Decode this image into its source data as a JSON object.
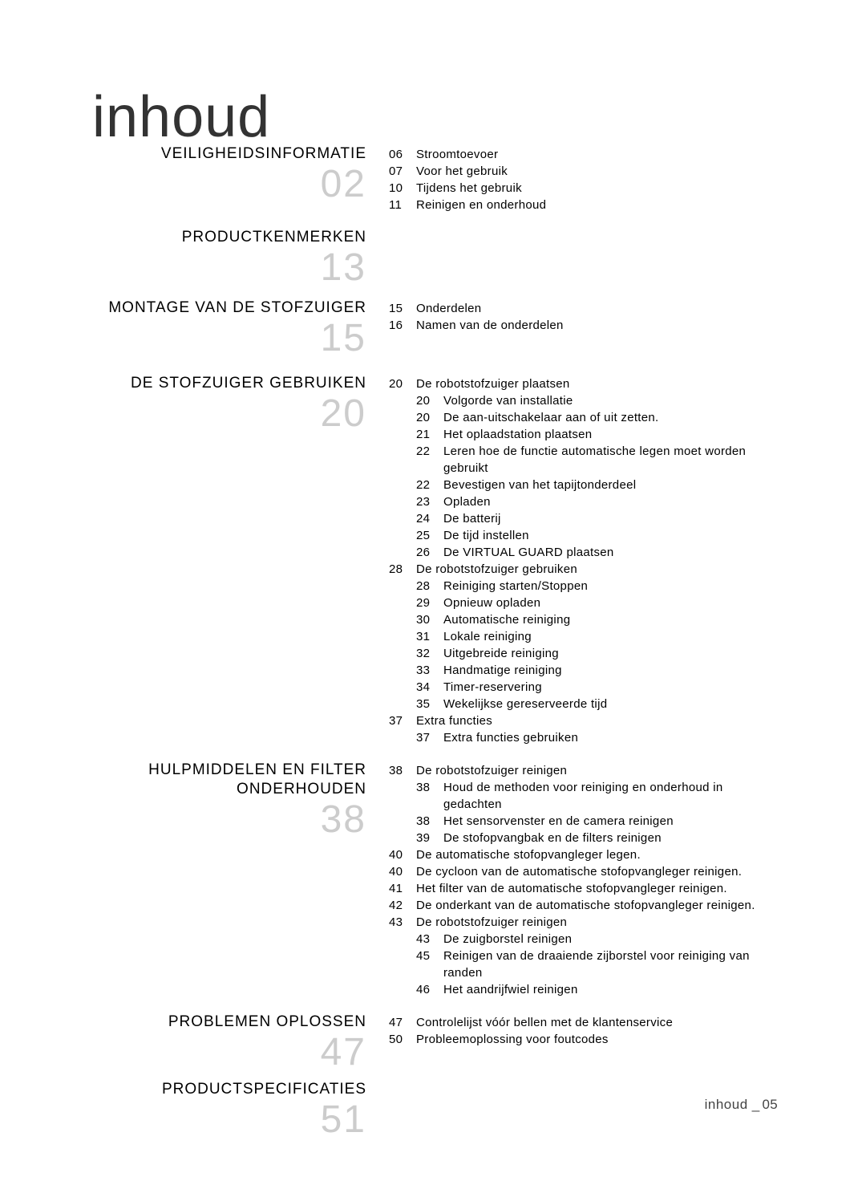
{
  "title": "inhoud",
  "footer": {
    "label": "inhoud",
    "separator": "_",
    "page": "05"
  },
  "sections": [
    {
      "heading": "VEILIGHEIDSINFORMATIE",
      "number": "02",
      "entries": [
        {
          "page": "06",
          "text": "Stroomtoevoer"
        },
        {
          "page": "07",
          "text": "Voor het gebruik"
        },
        {
          "page": "10",
          "text": "Tijdens het gebruik"
        },
        {
          "page": "11",
          "text": "Reinigen en onderhoud"
        }
      ]
    },
    {
      "heading": "PRODUCTKENMERKEN",
      "number": "13",
      "entries": []
    },
    {
      "heading": "MONTAGE VAN DE STOFZUIGER",
      "number": "15",
      "entries": [
        {
          "page": "15",
          "text": "Onderdelen"
        },
        {
          "page": "16",
          "text": "Namen van de onderdelen"
        }
      ]
    },
    {
      "heading": "DE STOFZUIGER GEBRUIKEN",
      "number": "20",
      "entries": [
        {
          "page": "20",
          "text": "De robotstofzuiger plaatsen",
          "sub": [
            {
              "page": "20",
              "text": "Volgorde van installatie"
            },
            {
              "page": "20",
              "text": "De aan-uitschakelaar aan of uit zetten."
            },
            {
              "page": "21",
              "text": "Het oplaadstation plaatsen"
            },
            {
              "page": "22",
              "text": "Leren hoe de functie automatische legen moet worden gebruikt"
            },
            {
              "page": "22",
              "text": "Bevestigen van het tapijtonderdeel"
            },
            {
              "page": "23",
              "text": "Opladen"
            },
            {
              "page": "24",
              "text": "De batterij"
            },
            {
              "page": "25",
              "text": "De tijd instellen"
            },
            {
              "page": "26",
              "text": "De VIRTUAL GUARD plaatsen"
            }
          ]
        },
        {
          "page": "28",
          "text": "De robotstofzuiger gebruiken",
          "sub": [
            {
              "page": "28",
              "text": "Reiniging starten/Stoppen"
            },
            {
              "page": "29",
              "text": "Opnieuw opladen"
            },
            {
              "page": "30",
              "text": "Automatische reiniging"
            },
            {
              "page": "31",
              "text": "Lokale reiniging"
            },
            {
              "page": "32",
              "text": "Uitgebreide reiniging"
            },
            {
              "page": "33",
              "text": "Handmatige reiniging"
            },
            {
              "page": "34",
              "text": "Timer-reservering"
            },
            {
              "page": "35",
              "text": "Wekelijkse gereserveerde tijd"
            }
          ]
        },
        {
          "page": "37",
          "text": "Extra functies",
          "sub": [
            {
              "page": "37",
              "text": "Extra functies gebruiken"
            }
          ]
        }
      ]
    },
    {
      "heading": "HULPMIDDELEN EN FILTER ONDERHOUDEN",
      "number": "38",
      "entries": [
        {
          "page": "38",
          "text": "De robotstofzuiger reinigen",
          "sub": [
            {
              "page": "38",
              "text": "Houd de methoden voor reiniging en onderhoud in gedachten"
            },
            {
              "page": "38",
              "text": "Het sensorvenster en de camera reinigen"
            },
            {
              "page": "39",
              "text": "De stofopvangbak en de filters reinigen"
            }
          ]
        },
        {
          "page": "40",
          "text": "De automatische stofopvangleger legen."
        },
        {
          "page": "40",
          "text": "De cycloon van de automatische stofopvangleger reinigen."
        },
        {
          "page": "41",
          "text": "Het filter van de automatische stofopvangleger reinigen."
        },
        {
          "page": "42",
          "text": "De onderkant van de automatische stofopvangleger reinigen."
        },
        {
          "page": "43",
          "text": "De robotstofzuiger reinigen",
          "sub": [
            {
              "page": "43",
              "text": "De zuigborstel reinigen"
            },
            {
              "page": "45",
              "text": "Reinigen van de draaiende zijborstel voor reiniging van randen"
            },
            {
              "page": "46",
              "text": "Het aandrijfwiel reinigen"
            }
          ]
        }
      ]
    },
    {
      "heading": "PROBLEMEN OPLOSSEN",
      "number": "47",
      "entries": [
        {
          "page": "47",
          "text": "Controlelijst vóór bellen met de klantenservice"
        },
        {
          "page": "50",
          "text": "Probleemoplossing voor foutcodes"
        }
      ]
    },
    {
      "heading": "PRODUCTSPECIFICATIES",
      "number": "51",
      "entries": []
    }
  ]
}
